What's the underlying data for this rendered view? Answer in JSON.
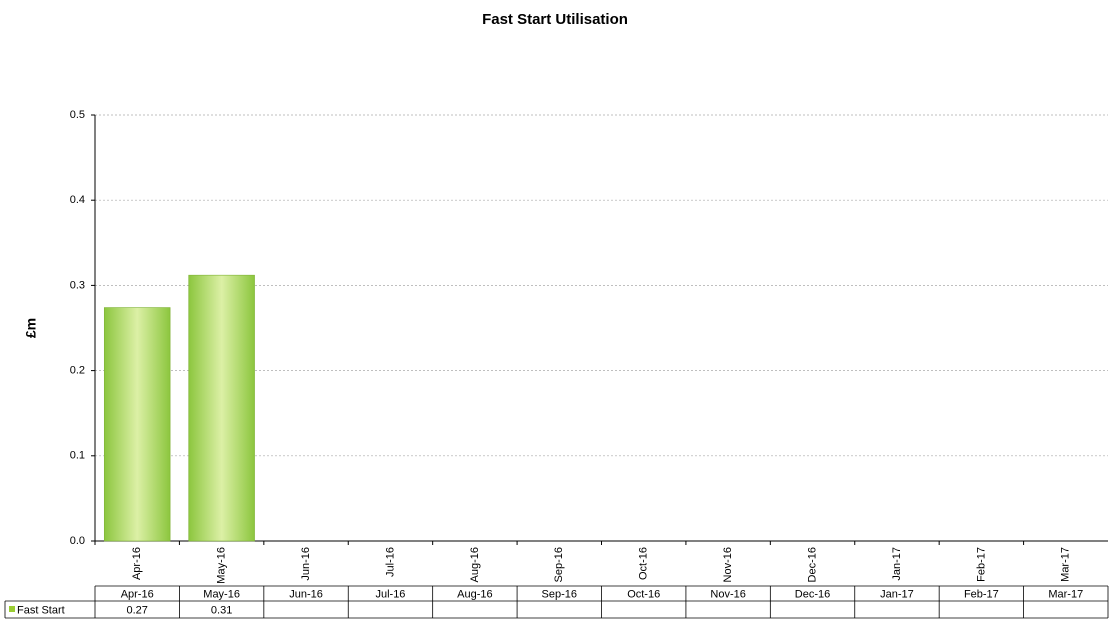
{
  "chart_data": {
    "type": "bar",
    "title": "Fast Start Utilisation",
    "y_label": "£m",
    "categories": [
      "Apr-16",
      "May-16",
      "Jun-16",
      "Jul-16",
      "Aug-16",
      "Sep-16",
      "Oct-16",
      "Nov-16",
      "Dec-16",
      "Jan-17",
      "Feb-17",
      "Mar-17"
    ],
    "series": [
      {
        "name": "Fast Start",
        "color": "#9acd32",
        "values": [
          0.274,
          0.312,
          null,
          null,
          null,
          null,
          null,
          null,
          null,
          null,
          null,
          null
        ],
        "value_labels": [
          "0.27",
          "0.31",
          null,
          null,
          null,
          null,
          null,
          null,
          null,
          null,
          null,
          null
        ]
      }
    ],
    "ylim": [
      0,
      0.5
    ],
    "yticks": [
      {
        "value": 0,
        "label": "0.0"
      },
      0.1,
      0.2,
      0.3,
      0.4,
      0.5
    ],
    "grid": true
  }
}
